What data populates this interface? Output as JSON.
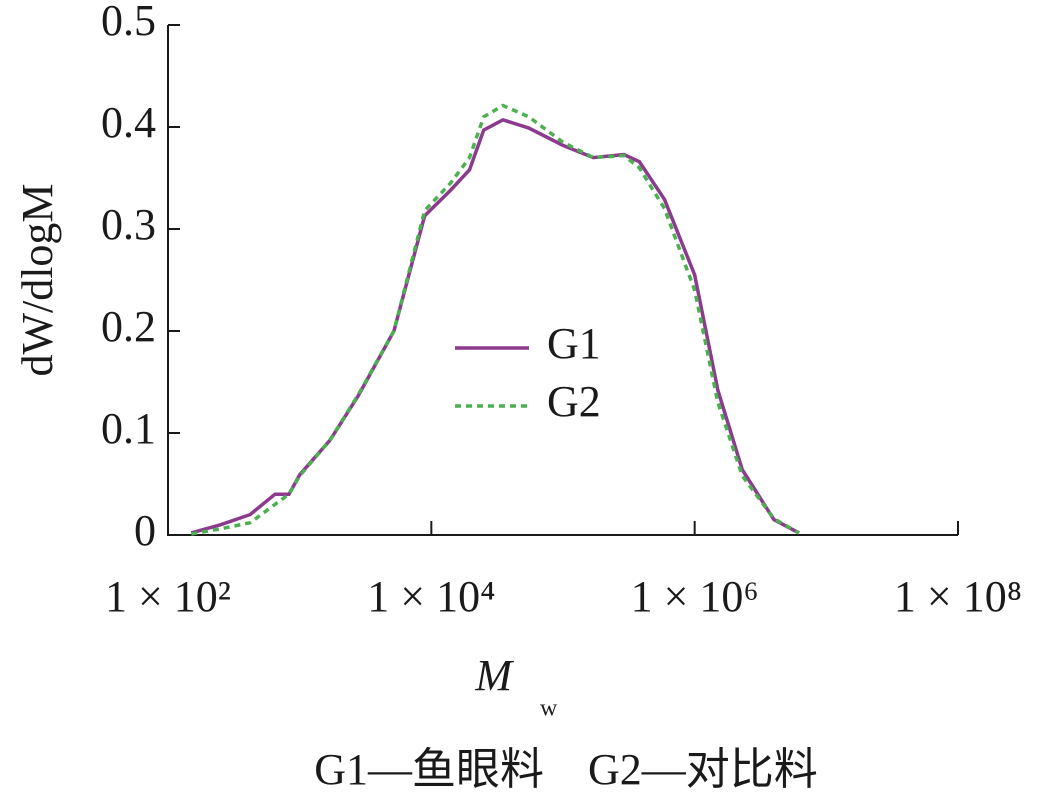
{
  "chart_data": {
    "type": "line",
    "ylabel": "dW/dlogM",
    "xlabel": "M",
    "xlabel_subscript": "w",
    "caption": "G1—鱼眼料　G2—对比料",
    "log_x": true,
    "xlim": [
      100,
      100000000
    ],
    "xticks": [
      {
        "value": 100,
        "label": "1 × 10²"
      },
      {
        "value": 10000,
        "label": "1 × 10⁴"
      },
      {
        "value": 1000000,
        "label": "1 × 10⁶"
      },
      {
        "value": 100000000,
        "label": "1 × 10⁸"
      }
    ],
    "ylim": [
      0,
      0.5
    ],
    "yticks": [
      0,
      0.1,
      0.2,
      0.3,
      0.4,
      0.5
    ],
    "x": [
      150,
      250,
      420,
      650,
      830,
      1000,
      1700,
      2800,
      5200,
      8900,
      14000,
      19500,
      25000,
      35000,
      55000,
      100000,
      170000,
      290000,
      380000,
      590000,
      1000000,
      1500000,
      2300000,
      4000000,
      6200000
    ],
    "series": [
      {
        "name": "G1",
        "color": "#8b3a8e",
        "dash": "solid",
        "values": [
          0.002,
          0.01,
          0.02,
          0.04,
          0.04,
          0.059,
          0.093,
          0.137,
          0.2,
          0.313,
          0.338,
          0.358,
          0.397,
          0.407,
          0.399,
          0.382,
          0.37,
          0.373,
          0.366,
          0.329,
          0.255,
          0.142,
          0.064,
          0.015,
          0.002
        ]
      },
      {
        "name": "G2",
        "color": "#4caf50",
        "dash": "dotted",
        "values": [
          0.001,
          0.006,
          0.012,
          0.03,
          0.04,
          0.058,
          0.093,
          0.138,
          0.2,
          0.318,
          0.345,
          0.37,
          0.41,
          0.421,
          0.41,
          0.385,
          0.37,
          0.372,
          0.36,
          0.32,
          0.24,
          0.13,
          0.058,
          0.016,
          0.002
        ]
      }
    ],
    "legend": "center"
  }
}
